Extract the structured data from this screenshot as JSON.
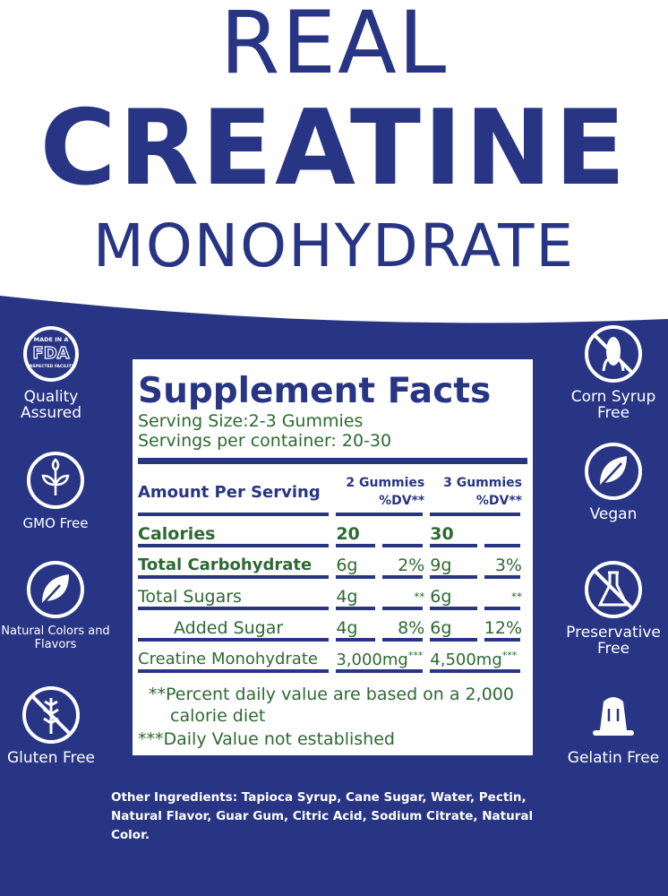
{
  "title": {
    "line1": "REAL",
    "line2": "CREATINE",
    "line3": "MONOHYDRATE"
  },
  "colors": {
    "navy": "#283584",
    "green": "#2c6a30",
    "white": "#ffffff"
  },
  "badges_left": [
    {
      "icon": "fda-badge-icon",
      "badge_text": [
        "MADE IN A",
        "FDA",
        "INSPECTED FACILITY"
      ],
      "label": "Quality Assured"
    },
    {
      "icon": "sprout-icon",
      "label": "GMO Free"
    },
    {
      "icon": "leaf-icon",
      "label": "Natural Colors and Flavors"
    },
    {
      "icon": "no-wheat-icon",
      "label": "Gluten Free"
    }
  ],
  "badges_right": [
    {
      "icon": "no-corn-icon",
      "label": "Corn Syrup Free"
    },
    {
      "icon": "vegan-leaf-icon",
      "label": "Vegan"
    },
    {
      "icon": "no-flask-icon",
      "label": "Preservative Free"
    },
    {
      "icon": "jelly-icon",
      "label": "Gelatin Free"
    }
  ],
  "facts": {
    "heading": "Supplement Facts",
    "serving_size": "Serving Size:2-3 Gummies",
    "servings_per_container": "Servings per container: 20-30",
    "header": {
      "amount": "Amount Per Serving",
      "col1": "2 Gummies",
      "col1_sub": "%DV**",
      "col2": "3 Gummies",
      "col2_sub": "%DV**"
    },
    "rows": [
      {
        "name": "Calories",
        "a1": "20",
        "d1": "",
        "a2": "30",
        "d2": ""
      },
      {
        "name": "Total Carbohydrate",
        "a1": "6g",
        "d1": "2%",
        "a2": "9g",
        "d2": "3%"
      },
      {
        "name": "Total Sugars",
        "a1": "4g",
        "d1": "**",
        "a2": "6g",
        "d2": "**"
      },
      {
        "name": "Added Sugar",
        "a1": "4g",
        "d1": "8%",
        "a2": "6g",
        "d2": "12%"
      },
      {
        "name": "Creatine Monohydrate",
        "a1": "3,000mg",
        "d1": "***",
        "a2": "4,500mg",
        "d2": "***"
      }
    ],
    "footnote1": "**Percent daily value are based on a 2,000 calorie diet",
    "footnote2": "***Daily Value not established"
  },
  "other_ingredients": "Other Ingredients: Tapioca Syrup, Cane Sugar, Water, Pectin, Natural Flavor, Guar Gum, Citric Acid, Sodium Citrate, Natural Color."
}
